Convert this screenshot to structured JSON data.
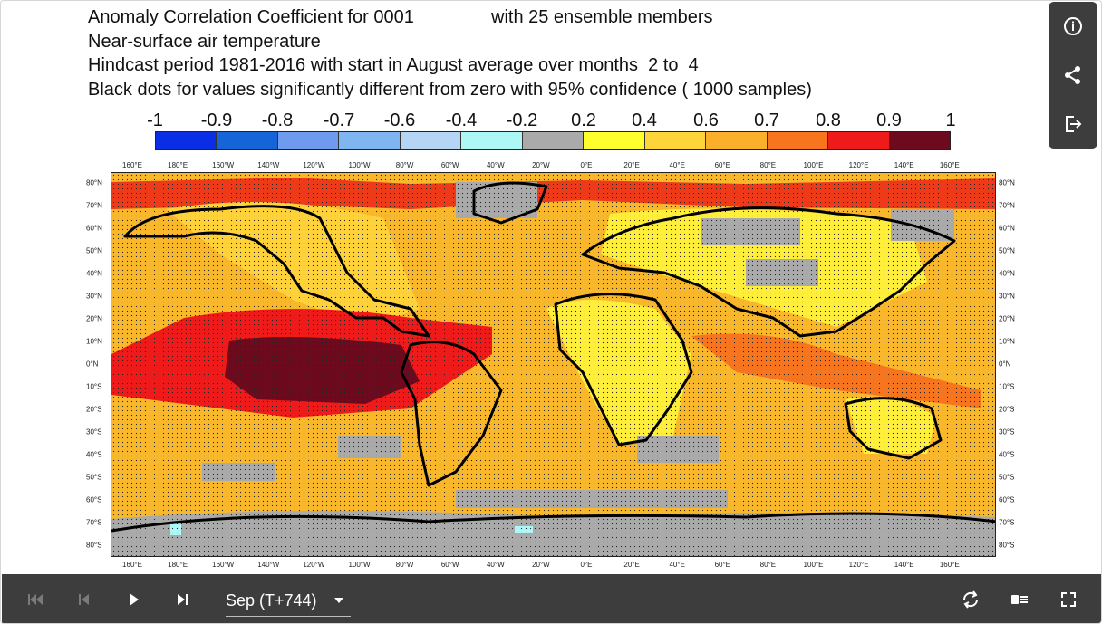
{
  "title": {
    "line1a": "Anomaly Correlation Coefficient for 0001",
    "line1b": "with 25 ensemble members",
    "line2": "Near-surface air temperature",
    "line3": "Hindcast period 1981-2016 with start in August average over months  2 to  4",
    "line4": "Black dots for values significantly different from zero with 95% confidence ( 1000 samples)"
  },
  "colorbar": {
    "labels": [
      "-1",
      "-0.9",
      "-0.8",
      "-0.7",
      "-0.6",
      "-0.4",
      "-0.2",
      "0.2",
      "0.4",
      "0.6",
      "0.7",
      "0.8",
      "0.9",
      "1"
    ],
    "colors": [
      "#0a2ee6",
      "#1565d8",
      "#6f9bef",
      "#7fb5f0",
      "#b5d5f5",
      "#aef7f7",
      "#aaaaaa",
      "#ffff2e",
      "#fdd43a",
      "#fbb02c",
      "#f87520",
      "#ef1a1a",
      "#6e0a1e"
    ]
  },
  "map": {
    "lon_labels": [
      "160°E",
      "180°E",
      "160°W",
      "140°W",
      "120°W",
      "100°W",
      "80°W",
      "60°W",
      "40°W",
      "20°W",
      "0°E",
      "20°E",
      "40°E",
      "60°E",
      "80°E",
      "100°E",
      "120°E",
      "140°E",
      "160°E"
    ],
    "lat_labels": [
      "80°N",
      "70°N",
      "60°N",
      "50°N",
      "40°N",
      "30°N",
      "20°N",
      "10°N",
      "0°N",
      "10°S",
      "20°S",
      "30°S",
      "40°S",
      "50°S",
      "60°S",
      "70°S",
      "80°S"
    ],
    "lat_values": [
      80,
      70,
      60,
      50,
      40,
      30,
      20,
      10,
      0,
      -10,
      -20,
      -30,
      -40,
      -50,
      -60,
      -70,
      -80
    ]
  },
  "side_panel": {
    "icons": [
      "info-icon",
      "share-icon",
      "export-icon"
    ]
  },
  "player": {
    "time_label": "Sep (T+744)",
    "icons": [
      "skip-first-icon",
      "step-back-icon",
      "play-icon",
      "step-forward-icon",
      "loop-icon",
      "legend-toggle-icon",
      "fullscreen-icon"
    ]
  }
}
